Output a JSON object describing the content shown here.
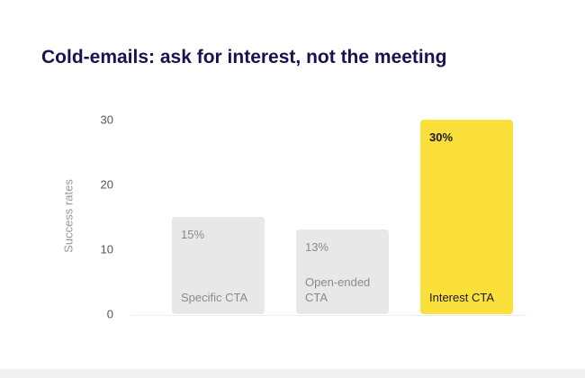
{
  "chart_data": {
    "type": "bar",
    "title": "Cold-emails: ask for interest, not the meeting",
    "y_axis_label": "Success rates",
    "categories": [
      "Specific CTA",
      "Open-ended CTA",
      "Interest CTA"
    ],
    "values": [
      15,
      13,
      30
    ],
    "value_labels": [
      "15%",
      "13%",
      "30%"
    ],
    "colors": [
      "#e8e8e8",
      "#e8e8e8",
      "#fbe03c"
    ],
    "ylim": [
      0,
      30
    ],
    "yticks": [
      0,
      10,
      20,
      30
    ]
  }
}
